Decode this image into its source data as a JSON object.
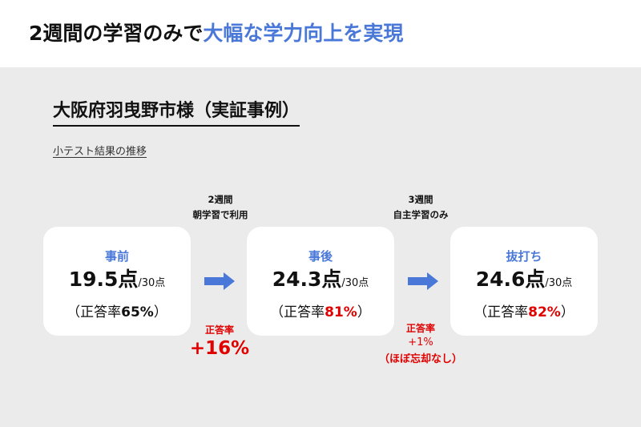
{
  "header": {
    "title_part1": "2週間の学習のみで",
    "title_part2": "大幅な学力向上を実現"
  },
  "case": {
    "title": "大阪府羽曳野市様（実証事例）",
    "subtitle": "小テスト結果の推移"
  },
  "periods": [
    {
      "line1": "2週間",
      "line2": "朝学習で利用"
    },
    {
      "line1": "3週間",
      "line2": "自主学習のみ"
    }
  ],
  "cards": [
    {
      "label": "事前",
      "score": "19.5点",
      "denom": "/30点",
      "rate_prefix": "（正答率",
      "rate_value": "65%",
      "rate_suffix": "）"
    },
    {
      "label": "事後",
      "score": "24.3点",
      "denom": "/30点",
      "rate_prefix": "（正答率",
      "rate_value": "81%",
      "rate_suffix": "）"
    },
    {
      "label": "抜打ち",
      "score": "24.6点",
      "denom": "/30点",
      "rate_prefix": "（正答率",
      "rate_value": "82%",
      "rate_suffix": "）"
    }
  ],
  "deltas": [
    {
      "label": "正答率",
      "value": "+16%"
    },
    {
      "label": "正答率",
      "value": "+1%",
      "note": "（ほぼ忘却なし）"
    }
  ],
  "colors": {
    "accent": "#4a78d8",
    "highlight": "#e00000",
    "panel_bg": "#ebebeb",
    "arrow": "#4a78d8"
  },
  "icons": [
    "right-arrow-icon",
    "right-arrow-icon"
  ]
}
